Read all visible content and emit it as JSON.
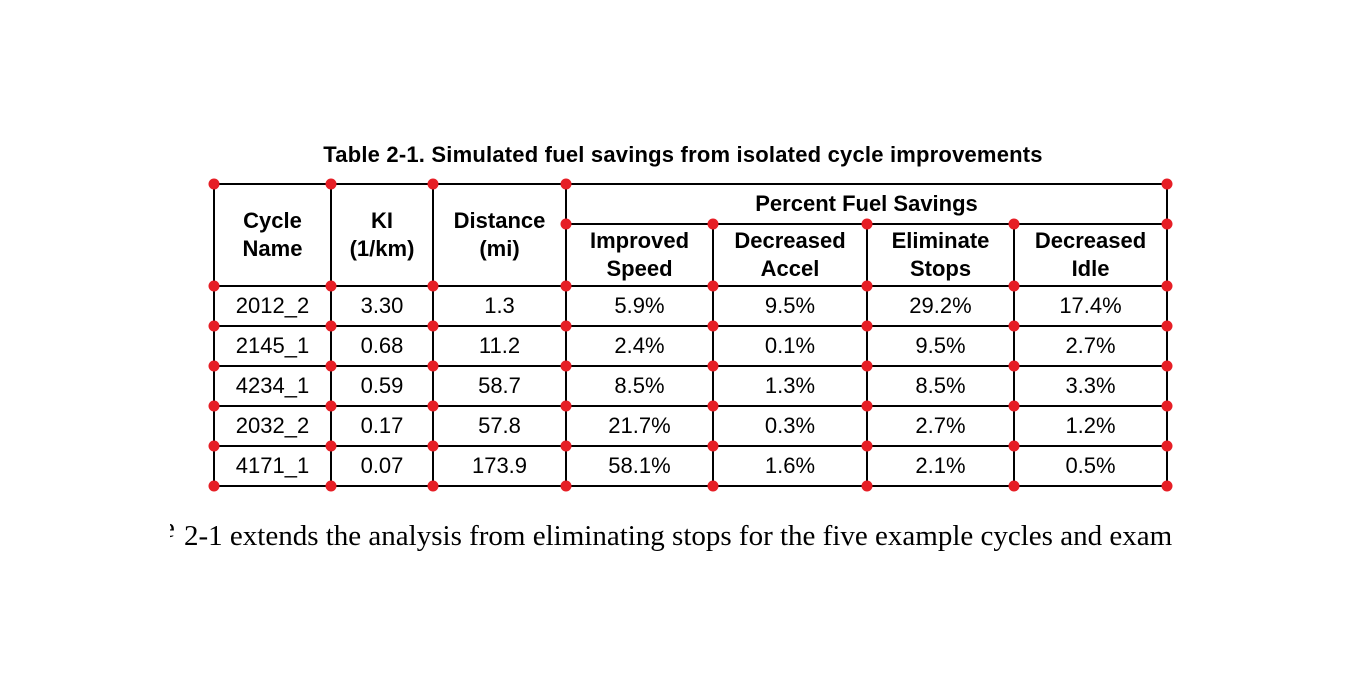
{
  "page": {
    "background": "#ffffff"
  },
  "caption": "Table 2-1. Simulated fuel savings from isolated cycle improvements",
  "table": {
    "group_header": "Percent Fuel Savings",
    "columns": [
      {
        "label": "Cycle\nName"
      },
      {
        "label": "KI\n(1/km)"
      },
      {
        "label": "Distance\n(mi)"
      },
      {
        "label": "Improved\nSpeed"
      },
      {
        "label": "Decreased\nAccel"
      },
      {
        "label": "Eliminate\nStops"
      },
      {
        "label": "Decreased\nIdle"
      }
    ],
    "rows": [
      {
        "cells": [
          "2012_2",
          "3.30",
          "1.3",
          "5.9%",
          "9.5%",
          "29.2%",
          "17.4%"
        ]
      },
      {
        "cells": [
          "2145_1",
          "0.68",
          "11.2",
          "2.4%",
          "0.1%",
          "9.5%",
          "2.7%"
        ]
      },
      {
        "cells": [
          "4234_1",
          "0.59",
          "58.7",
          "8.5%",
          "1.3%",
          "8.5%",
          "3.3%"
        ]
      },
      {
        "cells": [
          "2032_2",
          "0.17",
          "57.8",
          "21.7%",
          "0.3%",
          "2.7%",
          "1.2%"
        ]
      },
      {
        "cells": [
          "4171_1",
          "0.07",
          "173.9",
          "58.1%",
          "1.6%",
          "2.1%",
          "0.5%"
        ]
      }
    ]
  },
  "annotations": {
    "corner_marker_color": "#e61e25"
  },
  "body_text": {
    "clipped_leading_char": "e",
    "sentence": "2-1 extends the analysis from eliminating stops for the five example cycles and exam"
  }
}
